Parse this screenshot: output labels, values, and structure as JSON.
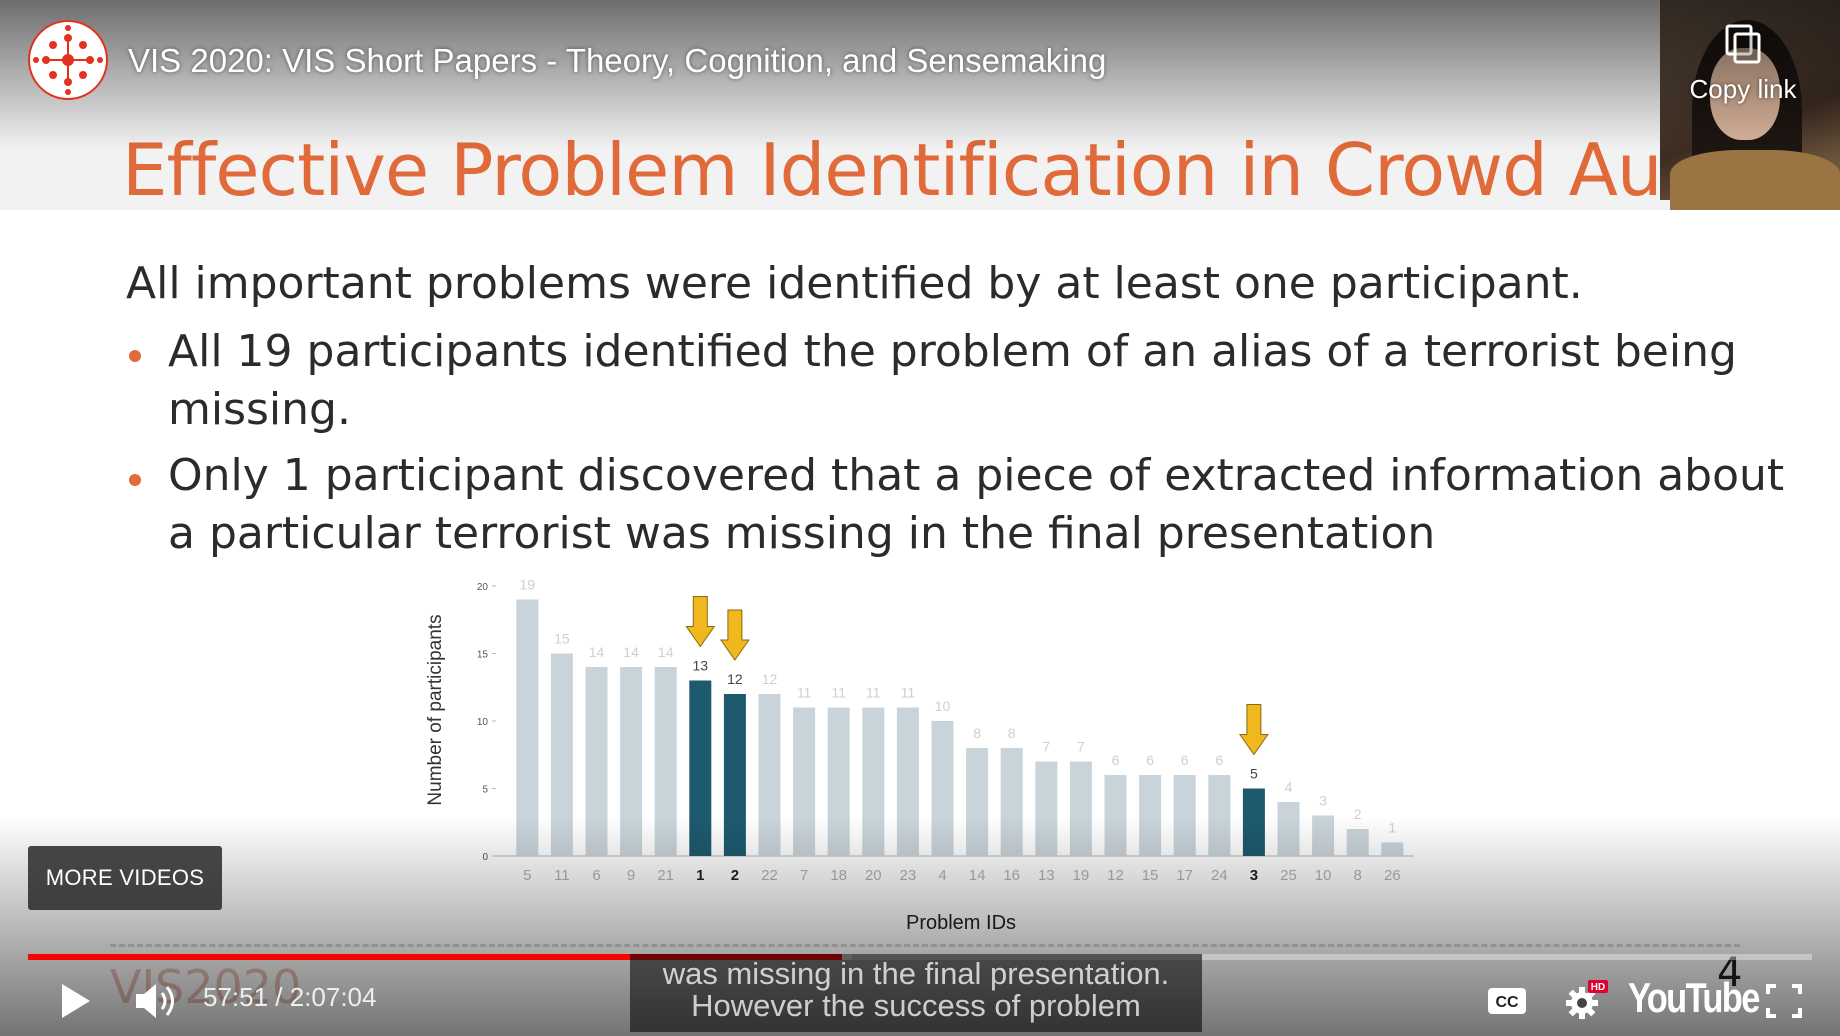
{
  "video": {
    "title": "VIS 2020: VIS Short Papers - Theory, Cognition, and Sensemaking",
    "copy_link_label": "Copy link",
    "more_videos_label": "MORE VIDEOS",
    "time_display": "57:51 / 2:07:04",
    "progress_played": 0.456,
    "progress_buffered": 0.462,
    "youtube_label": "YouTube",
    "captions": [
      "was missing in the final presentation.",
      "However the success of problem"
    ],
    "accent_color": "#ff0000"
  },
  "slide": {
    "title": "Effective Problem Identification in Crowd Auditing",
    "intro": "All important problems were identified by at least one participant.",
    "bullets": [
      [
        "All 19 participants identified the problem of an alias of a terrorist being",
        "missing."
      ],
      [
        "Only 1 participant discovered that a piece of extracted information about",
        "a particular terrorist was missing in the final presentation"
      ]
    ],
    "footer_logo": "VIS2020",
    "slide_number": "4",
    "title_color": "#e06a3a"
  },
  "chart_data": {
    "type": "bar",
    "xlabel": "Problem IDs",
    "ylabel": "Number of participants",
    "ylim": [
      0,
      20
    ],
    "yticks": [
      0,
      5,
      10,
      15,
      20
    ],
    "categories": [
      "5",
      "11",
      "6",
      "9",
      "21",
      "1",
      "2",
      "22",
      "7",
      "18",
      "20",
      "23",
      "4",
      "14",
      "16",
      "13",
      "19",
      "12",
      "15",
      "17",
      "24",
      "3",
      "25",
      "10",
      "8",
      "26"
    ],
    "values": [
      19,
      15,
      14,
      14,
      14,
      13,
      12,
      12,
      11,
      11,
      11,
      11,
      10,
      8,
      8,
      7,
      7,
      6,
      6,
      6,
      6,
      5,
      4,
      3,
      2,
      1
    ],
    "highlighted": [
      "1",
      "2",
      "3"
    ],
    "colors": {
      "normal": "#c9d4da",
      "highlight": "#1e5a6e",
      "arrow": "#f0b81e"
    }
  }
}
